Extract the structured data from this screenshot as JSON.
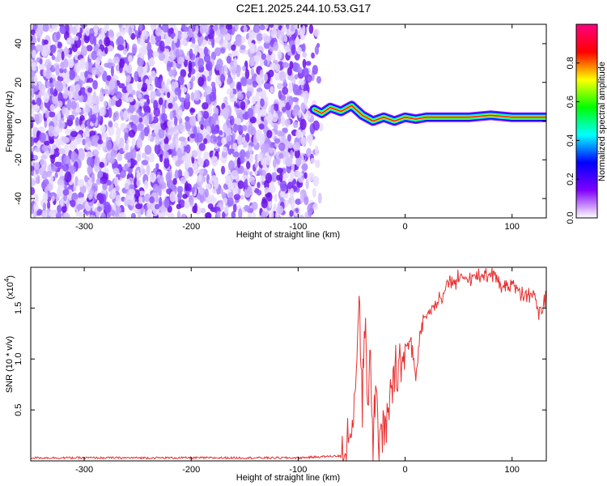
{
  "figure_title": "C2E1.2025.244.10.53.G17",
  "chart_data": [
    {
      "type": "heatmap",
      "title": "",
      "xlabel": "Height of straight line (km)",
      "ylabel": "Frequency (Hz)",
      "xlim": [
        -350,
        132
      ],
      "ylim": [
        -50,
        50
      ],
      "xticks": [
        -300,
        -200,
        -100,
        0,
        100
      ],
      "xtick_labels": [
        "-300",
        "-200",
        "-100",
        "0",
        "100"
      ],
      "yticks": [
        -40,
        -20,
        0,
        20,
        40
      ],
      "ytick_labels": [
        "-40",
        "-20",
        "0",
        "20",
        "40"
      ],
      "colorbar": {
        "label": "Normalized spectral amplitude",
        "range": [
          0,
          1
        ],
        "ticks": [
          0.0,
          0.2,
          0.4,
          0.6,
          0.8
        ],
        "tick_labels": [
          "0.0",
          "0.2",
          "0.4",
          "0.6",
          "0.8"
        ],
        "colormap": [
          "#ffffff",
          "#8000ff",
          "#0000ff",
          "#00ffff",
          "#00ff00",
          "#ffff00",
          "#ff0000",
          "#ff0080"
        ]
      },
      "noise_region_x": [
        -350,
        -78
      ],
      "signal_line_points": [
        {
          "x": -85,
          "y": 6
        },
        {
          "x": -78,
          "y": 4
        },
        {
          "x": -70,
          "y": 7
        },
        {
          "x": -60,
          "y": 5
        },
        {
          "x": -50,
          "y": 8
        },
        {
          "x": -40,
          "y": 3
        },
        {
          "x": -30,
          "y": 0
        },
        {
          "x": -20,
          "y": 2
        },
        {
          "x": -10,
          "y": 0
        },
        {
          "x": 0,
          "y": 2
        },
        {
          "x": 10,
          "y": 1
        },
        {
          "x": 20,
          "y": 2
        },
        {
          "x": 40,
          "y": 2
        },
        {
          "x": 60,
          "y": 2
        },
        {
          "x": 80,
          "y": 3
        },
        {
          "x": 100,
          "y": 2
        },
        {
          "x": 132,
          "y": 2
        }
      ]
    },
    {
      "type": "line",
      "title": "",
      "xlabel": "Height of straight line (km)",
      "ylabel": "SNR (10 * v/v)",
      "y_scale_label": "(x10",
      "y_scale_exponent": "4",
      "xlim": [
        -350,
        132
      ],
      "ylim": [
        0,
        1.9
      ],
      "xticks": [
        -300,
        -200,
        -100,
        0,
        100
      ],
      "xtick_labels": [
        "-300",
        "-200",
        "-100",
        "0",
        "100"
      ],
      "yticks": [
        0.5,
        1.0,
        1.5
      ],
      "ytick_labels": [
        "0.5",
        "1.0",
        "1.5"
      ],
      "series": [
        {
          "color": "#e83030",
          "x": [
            -350,
            -300,
            -250,
            -200,
            -150,
            -100,
            -80,
            -60,
            -55,
            -50,
            -47,
            -45,
            -43,
            -40,
            -37,
            -35,
            -33,
            -30,
            -27,
            -25,
            -20,
            -15,
            -10,
            -5,
            0,
            5,
            10,
            15,
            20,
            25,
            30,
            35,
            40,
            50,
            60,
            70,
            80,
            85,
            90,
            100,
            110,
            120,
            125,
            132
          ],
          "y": [
            0.03,
            0.03,
            0.03,
            0.03,
            0.03,
            0.03,
            0.04,
            0.05,
            0.1,
            0.3,
            0.7,
            1.0,
            1.6,
            0.5,
            1.4,
            0.3,
            1.1,
            0.2,
            0.7,
            0.2,
            0.4,
            0.6,
            0.9,
            1.0,
            1.1,
            1.2,
            0.8,
            1.35,
            1.45,
            1.5,
            1.55,
            1.65,
            1.75,
            1.78,
            1.8,
            1.82,
            1.84,
            1.82,
            1.7,
            1.75,
            1.6,
            1.65,
            1.45,
            1.6
          ]
        }
      ]
    }
  ]
}
